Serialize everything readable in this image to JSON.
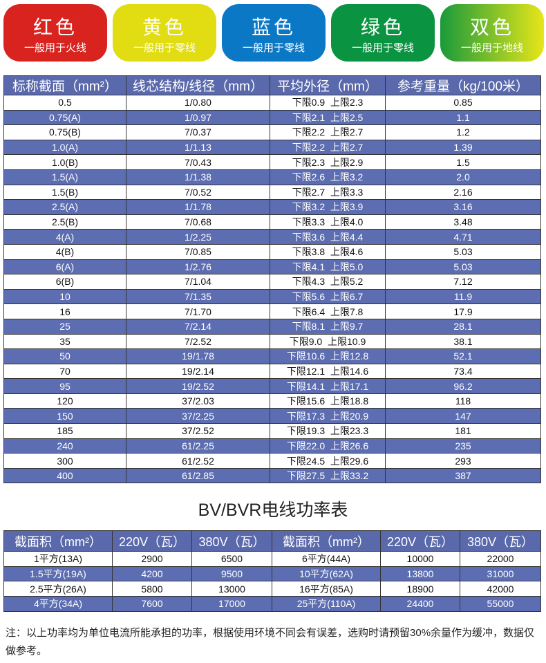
{
  "tabs": [
    {
      "title": "红色",
      "sub": "一般用于火线",
      "color": "#d8231f"
    },
    {
      "title": "黄色",
      "sub": "一般用于零线",
      "color": "#e2dc12"
    },
    {
      "title": "蓝色",
      "sub": "一般用于零线",
      "color": "#0b78c6"
    },
    {
      "title": "绿色",
      "sub": "一般用于零线",
      "color": "#0a9340"
    },
    {
      "title": "双色",
      "sub": "一般用于地线",
      "color": "linear-gradient(90deg,#1a9a3a,#e6e619)"
    }
  ],
  "spec_table": {
    "headers": [
      "标称截面（mm²）",
      "线芯结构/线径（mm）",
      "平均外径（mm）",
      "参考重量（kg/100米）"
    ],
    "rows": [
      [
        "0.5",
        "1/0.80",
        "下限0.9  上限2.3",
        "0.85"
      ],
      [
        "0.75(A)",
        "1/0.97",
        "下限2.1  上限2.5",
        "1.1"
      ],
      [
        "0.75(B)",
        "7/0.37",
        "下限2.2  上限2.7",
        "1.2"
      ],
      [
        "1.0(A)",
        "1/1.13",
        "下限2.2  上限2.7",
        "1.39"
      ],
      [
        "1.0(B)",
        "7/0.43",
        "下限2.3  上限2.9",
        "1.5"
      ],
      [
        "1.5(A)",
        "1/1.38",
        "下限2.6  上限3.2",
        "2.0"
      ],
      [
        "1.5(B)",
        "7/0.52",
        "下限2.7  上限3.3",
        "2.16"
      ],
      [
        "2.5(A)",
        "1/1.78",
        "下限3.2  上限3.9",
        "3.16"
      ],
      [
        "2.5(B)",
        "7/0.68",
        "下限3.3  上限4.0",
        "3.48"
      ],
      [
        "4(A)",
        "1/2.25",
        "下限3.6  上限4.4",
        "4.71"
      ],
      [
        "4(B)",
        "7/0.85",
        "下限3.8  上限4.6",
        "5.03"
      ],
      [
        "6(A)",
        "1/2.76",
        "下限4.1  上限5.0",
        "5.03"
      ],
      [
        "6(B)",
        "7/1.04",
        "下限4.3  上限5.2",
        "7.12"
      ],
      [
        "10",
        "7/1.35",
        "下限5.6  上限6.7",
        "11.9"
      ],
      [
        "16",
        "7/1.70",
        "下限6.4  上限7.8",
        "17.9"
      ],
      [
        "25",
        "7/2.14",
        "下限8.1  上限9.7",
        "28.1"
      ],
      [
        "35",
        "7/2.52",
        "下限9.0  上限10.9",
        "38.1"
      ],
      [
        "50",
        "19/1.78",
        "下限10.6  上限12.8",
        "52.1"
      ],
      [
        "70",
        "19/2.14",
        "下限12.1  上限14.6",
        "73.4"
      ],
      [
        "95",
        "19/2.52",
        "下限14.1  上限17.1",
        "96.2"
      ],
      [
        "120",
        "37/2.03",
        "下限15.6  上限18.8",
        "118"
      ],
      [
        "150",
        "37/2.25",
        "下限17.3  上限20.9",
        "147"
      ],
      [
        "185",
        "37/2.52",
        "下限19.3  上限23.3",
        "181"
      ],
      [
        "240",
        "61/2.25",
        "下限22.0  上限26.6",
        "235"
      ],
      [
        "300",
        "61/2.52",
        "下限24.5  上限29.6",
        "293"
      ],
      [
        "400",
        "61/2.85",
        "下限27.5  上限33.2",
        "387"
      ]
    ]
  },
  "power_title": "BV/BVR电线功率表",
  "power_table": {
    "headers": [
      "截面积（mm²）",
      "220V（瓦）",
      "380V（瓦）",
      "截面积（mm²）",
      "220V（瓦）",
      "380V（瓦）"
    ],
    "rows": [
      [
        "1平方(13A)",
        "2900",
        "6500",
        "6平方(44A)",
        "10000",
        "22000"
      ],
      [
        "1.5平方(19A)",
        "4200",
        "9500",
        "10平方(62A)",
        "13800",
        "31000"
      ],
      [
        "2.5平方(26A)",
        "5800",
        "13000",
        "16平方(85A)",
        "18900",
        "42000"
      ],
      [
        "4平方(34A)",
        "7600",
        "17000",
        "25平方(110A)",
        "24400",
        "55000"
      ]
    ]
  },
  "note": "注：以上功率均为单位电流所能承担的功率，根据使用环境不同会有误差，选购时请预留30%余量作为缓冲，数据仅做参考。"
}
